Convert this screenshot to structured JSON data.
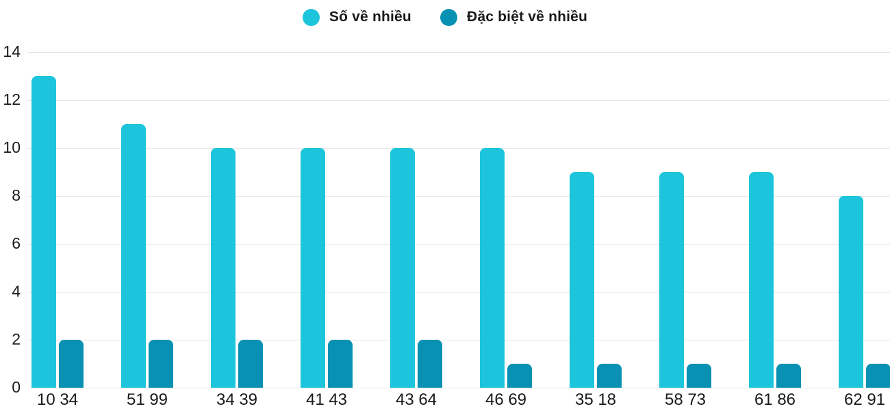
{
  "chart_data": {
    "type": "bar",
    "title": "",
    "xlabel": "",
    "ylabel": "",
    "categories": [
      "10 34",
      "51 99",
      "34 39",
      "41 43",
      "43 64",
      "46 69",
      "35 18",
      "58 73",
      "61 86",
      "62 91"
    ],
    "series": [
      {
        "name": "Số về nhiều",
        "color": "#1cc5db",
        "values": [
          13,
          11,
          10,
          10,
          10,
          10,
          9,
          9,
          9,
          8
        ]
      },
      {
        "name": "Đặc biệt về nhiều",
        "color": "#0891b2",
        "values": [
          2,
          2,
          2,
          2,
          2,
          1,
          1,
          1,
          1,
          1
        ]
      }
    ],
    "ylim": [
      0,
      14
    ],
    "yticks": [
      0,
      2,
      4,
      6,
      8,
      10,
      12,
      14
    ],
    "grid": true,
    "legend_position": "top-center"
  },
  "colors": {
    "grid": "#e4e4e4",
    "text": "#1a1a1a",
    "background": "#ffffff"
  }
}
